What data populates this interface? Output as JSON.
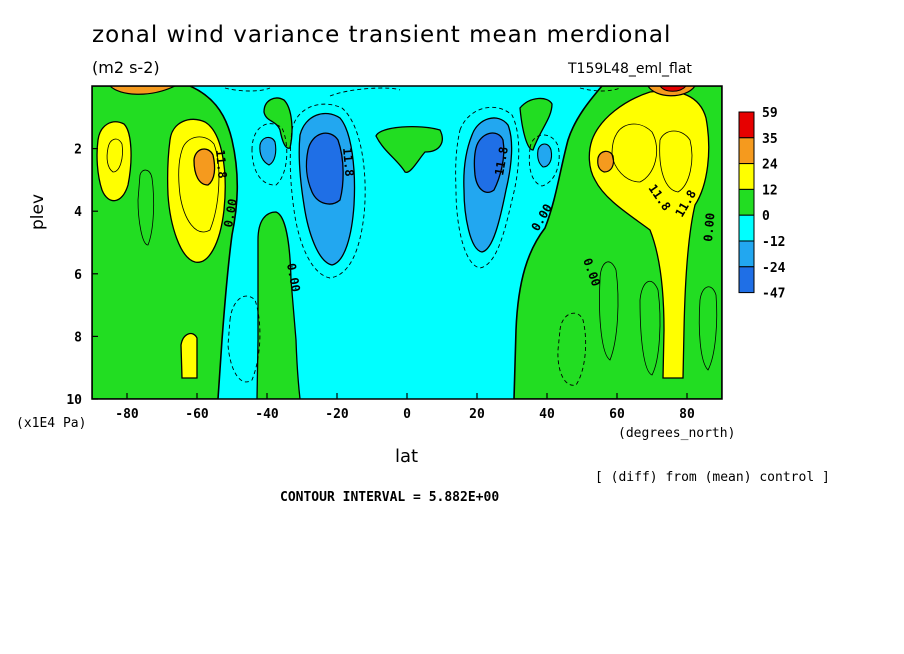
{
  "chart_data": {
    "type": "heatmap",
    "title": "zonal wind variance transient mean merdional",
    "subtitle": "(m2 s-2)",
    "run_label": "T159L48_eml_flat",
    "xlabel": "lat",
    "x_unit": "(degrees_north)",
    "ylabel": "plev",
    "y_unit": "(x1E4 Pa)",
    "xlim": [
      -90,
      90
    ],
    "ylim": [
      10,
      0
    ],
    "x_ticks": [
      -80,
      -60,
      -40,
      -20,
      0,
      20,
      40,
      60,
      80
    ],
    "y_ticks": [
      2,
      4,
      6,
      8,
      10
    ],
    "colorbar": {
      "levels": [
        "59",
        "35",
        "24",
        "12",
        "0",
        "-12",
        "-24",
        "-47"
      ],
      "colors": [
        "#e60000",
        "#f59a1e",
        "#ffff00",
        "#22dd22",
        "#00ffff",
        "#22a7f0",
        "#1f6fe6"
      ]
    },
    "contour_labels": [
      "11.8",
      "0.00",
      "0.00",
      "11.8",
      "11.8",
      "0.00",
      "0.00",
      "11.8",
      "11.8",
      "0.00"
    ],
    "note": "[ (diff) from (mean) control ]",
    "contour_interval": "CONTOUR INTERVAL = 5.882E+00"
  }
}
